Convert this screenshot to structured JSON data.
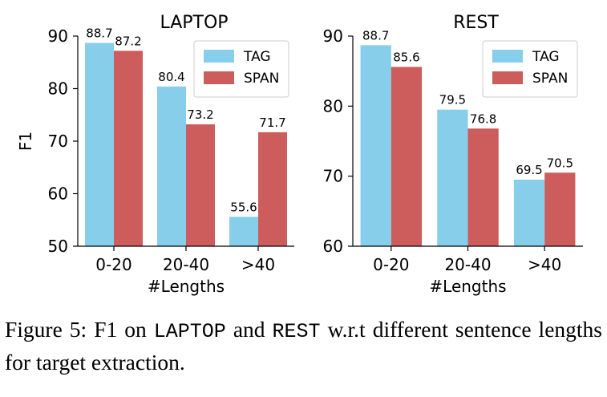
{
  "colors": {
    "tag": "#87CEEB",
    "span": "#CD5C5C"
  },
  "chart_data": [
    {
      "type": "bar",
      "title": "LAPTOP",
      "categories": [
        "0-20",
        "20-40",
        ">40"
      ],
      "series": [
        {
          "name": "TAG",
          "values": [
            88.7,
            80.4,
            55.6
          ]
        },
        {
          "name": "SPAN",
          "values": [
            87.2,
            73.2,
            71.7
          ]
        }
      ],
      "xlabel": "#Lengths",
      "ylabel": "F1",
      "ylim": [
        50,
        90
      ],
      "yticks": [
        50,
        60,
        70,
        80,
        90
      ],
      "legend": "top-right",
      "grid": false
    },
    {
      "type": "bar",
      "title": "REST",
      "categories": [
        "0-20",
        "20-40",
        ">40"
      ],
      "series": [
        {
          "name": "TAG",
          "values": [
            88.7,
            79.5,
            69.5
          ]
        },
        {
          "name": "SPAN",
          "values": [
            85.6,
            76.8,
            70.5
          ]
        }
      ],
      "xlabel": "#Lengths",
      "ylabel": "",
      "ylim": [
        60,
        90
      ],
      "yticks": [
        60,
        70,
        80,
        90
      ],
      "legend": "top-right",
      "grid": false
    }
  ],
  "caption": {
    "prefix": "Figure 5: F1 on ",
    "laptop": "LAPTOP",
    "and": " and ",
    "rest": "REST",
    "suffix": " w.r.t different sentence lengths for target extraction."
  }
}
